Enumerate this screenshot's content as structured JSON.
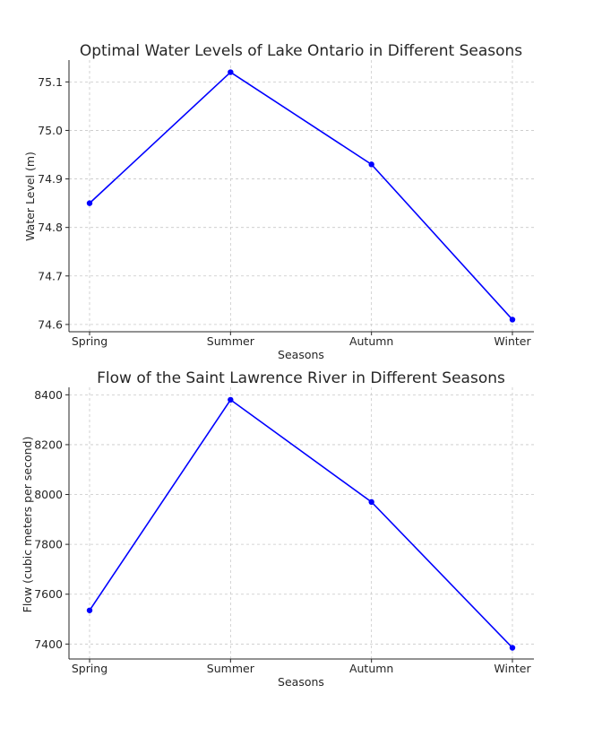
{
  "chart_data": [
    {
      "type": "line",
      "title": "Optimal Water Levels of Lake Ontario in Different Seasons",
      "xlabel": "Seasons",
      "ylabel": "Water Level (m)",
      "categories": [
        "Spring",
        "Summer",
        "Autumn",
        "Winter"
      ],
      "yticks": [
        "74.6",
        "74.7",
        "74.8",
        "74.9",
        "75.0",
        "75.1"
      ],
      "ytick_values": [
        74.6,
        74.7,
        74.8,
        74.9,
        75.0,
        75.1
      ],
      "ylim": [
        74.585,
        75.145
      ],
      "series": [
        {
          "values": [
            74.85,
            75.12,
            74.93,
            74.61
          ]
        }
      ],
      "color": "#0000ff",
      "grid": true
    },
    {
      "type": "line",
      "title": "Flow of the Saint Lawrence River in Different Seasons",
      "xlabel": "Seasons",
      "ylabel": "Flow (cubic meters per second)",
      "categories": [
        "Spring",
        "Summer",
        "Autumn",
        "Winter"
      ],
      "yticks": [
        "7400",
        "7600",
        "7800",
        "8000",
        "8200",
        "8400"
      ],
      "ytick_values": [
        7400,
        7600,
        7800,
        8000,
        8200,
        8400
      ],
      "ylim": [
        7340,
        8430
      ],
      "series": [
        {
          "values": [
            7535,
            8380,
            7970,
            7385
          ]
        }
      ],
      "color": "#0000ff",
      "grid": true
    }
  ]
}
